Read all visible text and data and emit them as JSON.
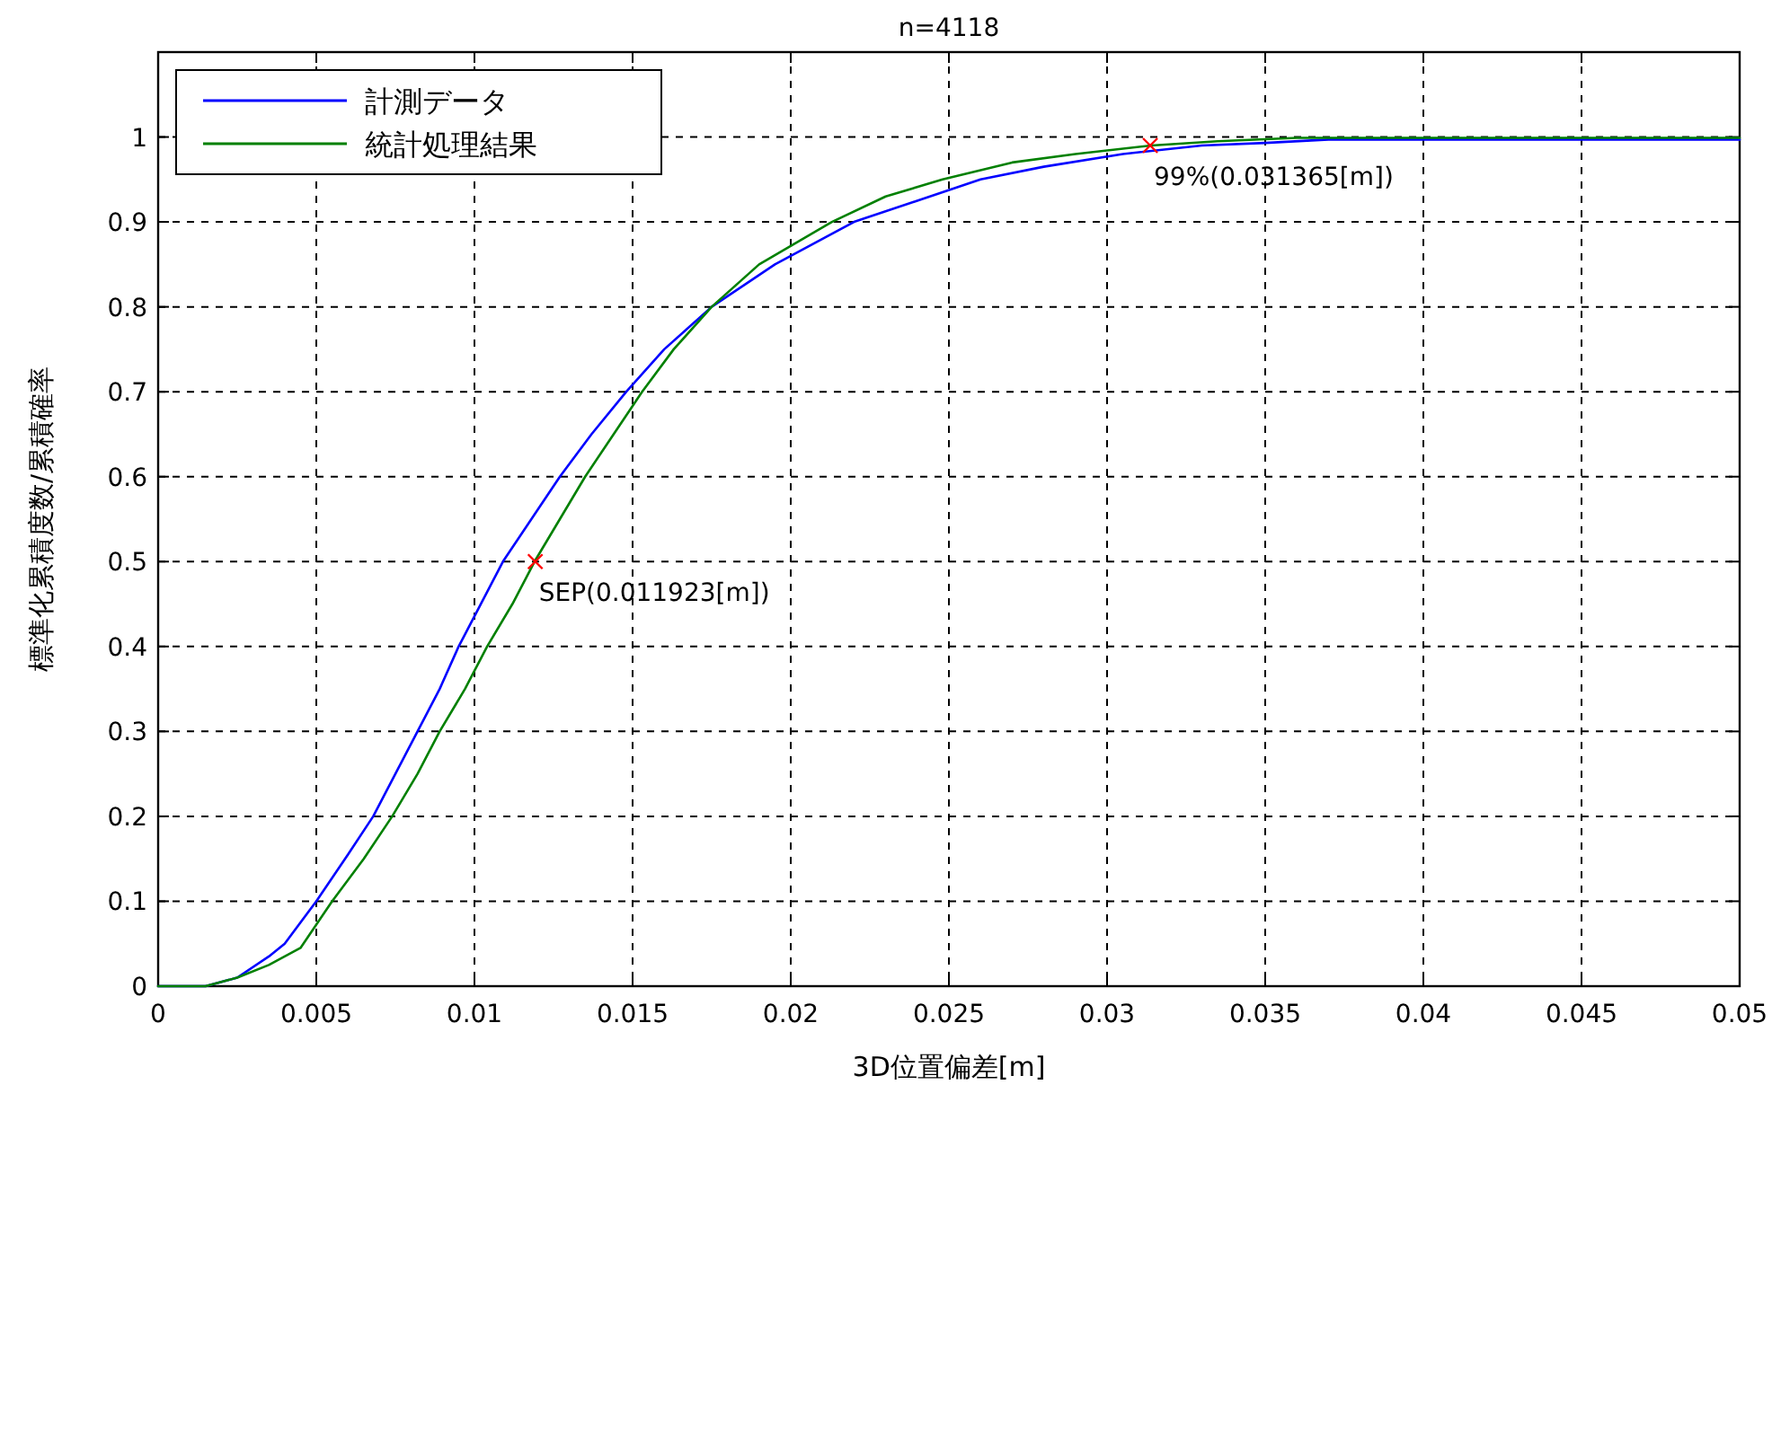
{
  "chart_data": {
    "type": "line",
    "title": "n=4118",
    "xlabel": "3D位置偏差[m]",
    "ylabel": "標準化累積度数/累積確率",
    "xlim": [
      0,
      0.05
    ],
    "xticks": [
      0,
      0.005,
      0.01,
      0.015,
      0.02,
      0.025,
      0.03,
      0.035,
      0.04,
      0.045,
      0.05
    ],
    "ylim": [
      0,
      1.1
    ],
    "yticks": [
      0,
      0.1,
      0.2,
      0.3,
      0.4,
      0.5,
      0.6,
      0.7,
      0.8,
      0.9,
      1
    ],
    "grid": true,
    "legend": "top left",
    "line_style": "solid",
    "marker": "none",
    "series": [
      {
        "name": "計測データ",
        "color": "#0000ff",
        "x": [
          0,
          0.0015,
          0.0025,
          0.0035,
          0.004,
          0.005,
          0.006,
          0.0068,
          0.0075,
          0.0082,
          0.0089,
          0.0095,
          0.0102,
          0.0109,
          0.0118,
          0.0127,
          0.0137,
          0.0148,
          0.016,
          0.0175,
          0.0195,
          0.022,
          0.024,
          0.026,
          0.028,
          0.0305,
          0.033,
          0.035,
          0.037,
          0.05
        ],
        "values": [
          0,
          0,
          0.01,
          0.035,
          0.05,
          0.1,
          0.155,
          0.2,
          0.25,
          0.3,
          0.35,
          0.4,
          0.45,
          0.5,
          0.55,
          0.6,
          0.65,
          0.7,
          0.75,
          0.8,
          0.85,
          0.9,
          0.925,
          0.95,
          0.965,
          0.98,
          0.99,
          0.993,
          0.997,
          0.997
        ]
      },
      {
        "name": "統計処理結果",
        "color": "#008000",
        "x": [
          0,
          0.0015,
          0.0025,
          0.0035,
          0.0045,
          0.0055,
          0.0065,
          0.0074,
          0.0082,
          0.0089,
          0.0097,
          0.0104,
          0.0112,
          0.0119,
          0.0127,
          0.0135,
          0.0144,
          0.0153,
          0.0163,
          0.0175,
          0.019,
          0.0213,
          0.023,
          0.0248,
          0.027,
          0.029,
          0.0314,
          0.0335,
          0.036,
          0.05
        ],
        "values": [
          0,
          0,
          0.01,
          0.025,
          0.045,
          0.1,
          0.15,
          0.2,
          0.25,
          0.3,
          0.35,
          0.4,
          0.45,
          0.5,
          0.55,
          0.6,
          0.65,
          0.7,
          0.75,
          0.8,
          0.85,
          0.9,
          0.93,
          0.95,
          0.97,
          0.98,
          0.99,
          0.995,
          0.999,
          0.999
        ]
      },
      {
        "type": "scatter",
        "marker": "cross",
        "color": "#ff0000",
        "x": [
          0.011923,
          0.031365
        ],
        "values": [
          0.5,
          0.99
        ]
      }
    ],
    "annotations": [
      {
        "text": "SEP(0.011923[m])",
        "x": 0.011923,
        "y": 0.5
      },
      {
        "text": "99%(0.031365[m])",
        "x": 0.031365,
        "y": 0.99
      }
    ]
  }
}
